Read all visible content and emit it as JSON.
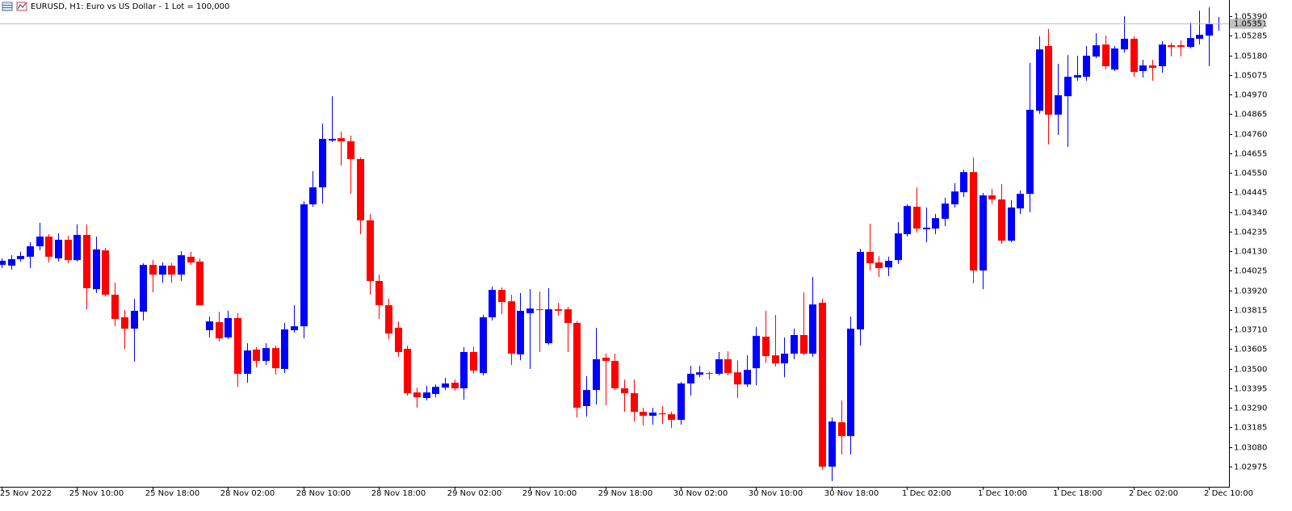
{
  "chart_data": {
    "type": "candlestick",
    "title": "EURUSD, H1:  Euro vs US Dollar - 1 Lot = 100,000",
    "up_color": "#0000ff",
    "down_color": "#ff0000",
    "bid": 1.05351,
    "bid_color": "#c0c0c0",
    "ylim": [
      1.02866,
      1.05477
    ],
    "yticks": [
      {
        "value": 1.0539,
        "label": "1.05390"
      },
      1.05285,
      {
        "value": 1.0518,
        "label": "1.05180"
      },
      1.05075,
      {
        "value": 1.0497,
        "label": "1.04970"
      },
      1.04865,
      {
        "value": 1.0476,
        "label": "1.04760"
      },
      1.04655,
      {
        "value": 1.0455,
        "label": "1.04550"
      },
      1.04445,
      {
        "value": 1.0434,
        "label": "1.04340"
      },
      1.04235,
      {
        "value": 1.0413,
        "label": "1.04130"
      },
      1.04025,
      {
        "value": 1.0392,
        "label": "1.03920"
      },
      1.03815,
      {
        "value": 1.0371,
        "label": "1.03710"
      },
      1.03605,
      {
        "value": 1.035,
        "label": "1.03500"
      },
      1.03395,
      {
        "value": 1.0329,
        "label": "1.03290"
      },
      1.03185,
      {
        "value": 1.0308,
        "label": "1.03080"
      },
      1.02975
    ],
    "categories": [
      "25 Nov 2022",
      null,
      null,
      null,
      null,
      null,
      null,
      null,
      "25 Nov 10:00",
      null,
      null,
      null,
      null,
      null,
      null,
      null,
      "25 Nov 18:00",
      null,
      null,
      null,
      null,
      null,
      null,
      null,
      "28 Nov 02:00",
      null,
      null,
      null,
      null,
      null,
      null,
      null,
      "28 Nov 10:00",
      null,
      null,
      null,
      null,
      null,
      null,
      null,
      "28 Nov 18:00",
      null,
      null,
      null,
      null,
      null,
      null,
      null,
      "29 Nov 02:00",
      null,
      null,
      null,
      null,
      null,
      null,
      null,
      "29 Nov 10:00",
      null,
      null,
      null,
      null,
      null,
      null,
      null,
      "29 Nov 18:00",
      null,
      null,
      null,
      null,
      null,
      null,
      null,
      "30 Nov 02:00",
      null,
      null,
      null,
      null,
      null,
      null,
      null,
      "30 Nov 10:00",
      null,
      null,
      null,
      null,
      null,
      null,
      null,
      "30 Nov 18:00",
      null,
      null,
      null,
      null,
      null,
      null,
      null,
      "1 Dec 02:00",
      null,
      null,
      null,
      null,
      null,
      null,
      null,
      "1 Dec 10:00",
      null,
      null,
      null,
      null,
      null,
      null,
      null,
      "1 Dec 18:00",
      null,
      null,
      null,
      null,
      null,
      null,
      null,
      "2 Dec 02:00",
      null,
      null,
      null,
      null,
      null,
      null,
      null,
      "2 Dec 10:00",
      null
    ],
    "open": [
      1.04056,
      1.04052,
      1.04087,
      1.041,
      1.04156,
      1.04208,
      1.04091,
      1.04191,
      1.04082,
      1.04217,
      1.03926,
      1.04134,
      1.03896,
      1.03775,
      1.03714,
      1.03805,
      1.04056,
      1.04004,
      1.04052,
      1.04004,
      1.041,
      1.04074,
      1.03706,
      1.03749,
      1.03667,
      1.03771,
      1.03472,
      1.03602,
      1.03541,
      1.0361,
      1.03498,
      1.03706,
      1.03727,
      1.04381,
      1.04472,
      1.04723,
      1.04736,
      1.04719,
      1.04624,
      1.04295,
      1.0397,
      1.0384,
      1.03719,
      1.03606,
      1.03372,
      1.03342,
      1.03364,
      1.03398,
      1.03424,
      1.03394,
      1.03589,
      1.03476,
      1.03775,
      1.03922,
      1.03861,
      1.03576,
      1.03797,
      1.03818,
      1.03636,
      1.03818,
      1.03818,
      1.03745,
      1.03299,
      1.03385,
      1.03558,
      1.03541,
      1.03394,
      1.03368,
      1.03268,
      1.03247,
      1.0326,
      1.03255,
      1.03225,
      1.0342,
      1.03467,
      1.03476,
      1.03472,
      1.0355,
      1.0348,
      1.03415,
      1.03502,
      1.03671,
      1.03571,
      1.03528,
      1.0358,
      1.0368,
      1.0358,
      1.03853,
      1.02974,
      1.03212,
      1.03138,
      1.0371,
      1.04126,
      1.04069,
      1.04043,
      1.04082,
      1.04221,
      1.04368,
      1.04247,
      1.04251,
      1.04303,
      1.04381,
      1.04446,
      1.04554,
      1.04026,
      1.04429,
      1.04407,
      1.04186,
      1.04359,
      1.04437,
      1.04883,
      1.0523,
      1.04862,
      1.04961,
      1.05061,
      1.05065,
      1.05174,
      1.05238,
      1.05104,
      1.05212,
      1.05269,
      1.05096,
      1.05126,
      1.05122,
      1.05234,
      1.05234,
      1.05225,
      1.05269,
      1.05286,
      1.05347
    ],
    "high": [
      1.04091,
      1.04108,
      1.04126,
      1.04178,
      1.04282,
      1.04221,
      1.04225,
      1.04212,
      1.04273,
      1.04273,
      1.04208,
      1.04147,
      1.03961,
      1.03814,
      1.03874,
      1.04065,
      1.04082,
      1.04069,
      1.04065,
      1.0413,
      1.04126,
      1.04091,
      1.03779,
      1.03805,
      1.0381,
      1.03797,
      1.03636,
      1.03615,
      1.03636,
      1.03623,
      1.03745,
      1.0384,
      1.04398,
      1.04559,
      1.04814,
      1.04961,
      1.04771,
      1.04749,
      1.04632,
      1.04329,
      1.04004,
      1.03874,
      1.03753,
      1.03623,
      1.03398,
      1.03407,
      1.03415,
      1.0345,
      1.03441,
      1.03615,
      1.03615,
      1.03788,
      1.03939,
      1.03935,
      1.03896,
      1.03905,
      1.03926,
      1.03913,
      1.03931,
      1.03853,
      1.03831,
      1.03753,
      1.03459,
      1.03719,
      1.0358,
      1.0358,
      1.03441,
      1.03441,
      1.0329,
      1.0329,
      1.03299,
      1.03268,
      1.03428,
      1.03515,
      1.03515,
      1.03485,
      1.03589,
      1.03593,
      1.03545,
      1.03571,
      1.03723,
      1.0381,
      1.03788,
      1.03667,
      1.03714,
      1.03909,
      1.03991,
      1.03874,
      1.03238,
      1.03329,
      1.03779,
      1.04143,
      1.04277,
      1.04104,
      1.041,
      1.04286,
      1.04381,
      1.04472,
      1.04364,
      1.04329,
      1.04416,
      1.04494,
      1.04567,
      1.04632,
      1.04442,
      1.04463,
      1.04489,
      1.04403,
      1.04455,
      1.05139,
      1.05282,
      1.05321,
      1.05135,
      1.05182,
      1.05178,
      1.0523,
      1.05299,
      1.05286,
      1.0523,
      1.0539,
      1.05282,
      1.05156,
      1.05156,
      1.05256,
      1.05247,
      1.0526,
      1.05355,
      1.0542,
      1.05438,
      1.05386
    ],
    "low": [
      1.04039,
      1.0403,
      1.04074,
      1.04039,
      1.04134,
      1.04069,
      1.04074,
      1.04065,
      1.04074,
      1.03818,
      1.03905,
      1.03887,
      1.03727,
      1.03606,
      1.03537,
      1.03758,
      1.03909,
      1.03961,
      1.03961,
      1.0397,
      1.04056,
      1.0384,
      1.03667,
      1.03645,
      1.03658,
      1.03402,
      1.03424,
      1.03506,
      1.03519,
      1.03467,
      1.03476,
      1.03693,
      1.03662,
      1.04368,
      1.04385,
      1.04715,
      1.04589,
      1.04437,
      1.04221,
      1.03896,
      1.03766,
      1.03658,
      1.03563,
      1.03355,
      1.0329,
      1.03329,
      1.03346,
      1.03385,
      1.03381,
      1.03333,
      1.03472,
      1.03463,
      1.03758,
      1.03792,
      1.03519,
      1.03545,
      1.03498,
      1.03589,
      1.03628,
      1.03784,
      1.03589,
      1.03238,
      1.03242,
      1.03307,
      1.03303,
      1.03385,
      1.03268,
      1.03216,
      1.03195,
      1.03199,
      1.03203,
      1.03182,
      1.03199,
      1.03355,
      1.03454,
      1.03441,
      1.03463,
      1.03463,
      1.03342,
      1.03402,
      1.03411,
      1.03532,
      1.03511,
      1.03454,
      1.0355,
      1.03571,
      1.03563,
      1.02957,
      1.02896,
      1.03039,
      1.03039,
      1.03623,
      1.04026,
      1.03991,
      1.03996,
      1.04061,
      1.04208,
      1.0423,
      1.04178,
      1.04221,
      1.04264,
      1.04364,
      1.0442,
      1.03957,
      1.03926,
      1.04385,
      1.04169,
      1.04178,
      1.04329,
      1.04338,
      1.04866,
      1.04702,
      1.04753,
      1.04689,
      1.05044,
      1.05044,
      1.05165,
      1.05104,
      1.05096,
      1.05195,
      1.05065,
      1.05061,
      1.05044,
      1.05087,
      1.05174,
      1.05174,
      1.05217,
      1.05238,
      1.05122,
      1.05312
    ],
    "close": [
      1.04078,
      1.04087,
      1.04104,
      1.04156,
      1.04208,
      1.041,
      1.04191,
      1.04082,
      1.04217,
      1.03931,
      1.04139,
      1.03896,
      1.03766,
      1.03714,
      1.0381,
      1.04056,
      1.04004,
      1.04052,
      1.04004,
      1.04108,
      1.04069,
      1.0384,
      1.03753,
      1.03662,
      1.03771,
      1.03472,
      1.03597,
      1.03541,
      1.0361,
      1.03502,
      1.0371,
      1.03727,
      1.04381,
      1.04472,
      1.04732,
      1.04732,
      1.04719,
      1.04624,
      1.04295,
      1.0397,
      1.0384,
      1.03688,
      1.03589,
      1.03368,
      1.03346,
      1.03372,
      1.03402,
      1.0342,
      1.03394,
      1.03589,
      1.03489,
      1.03775,
      1.03922,
      1.03857,
      1.0358,
      1.0381,
      1.03822,
      1.03814,
      1.03818,
      1.0381,
      1.03745,
      1.0329,
      1.03385,
      1.0355,
      1.03541,
      1.03394,
      1.03368,
      1.03268,
      1.03247,
      1.03264,
      1.03255,
      1.03225,
      1.0342,
      1.03472,
      1.0348,
      1.03472,
      1.0355,
      1.03476,
      1.03415,
      1.03493,
      1.03675,
      1.03567,
      1.03528,
      1.0358,
      1.0368,
      1.0358,
      1.03844,
      1.02974,
      1.03216,
      1.03138,
      1.03714,
      1.04126,
      1.04065,
      1.04039,
      1.04078,
      1.04225,
      1.04372,
      1.04251,
      1.04256,
      1.04307,
      1.04385,
      1.0445,
      1.04554,
      1.04026,
      1.04429,
      1.04407,
      1.04186,
      1.04364,
      1.04437,
      1.04888,
      1.05212,
      1.04862,
      1.04966,
      1.05065,
      1.05074,
      1.05178,
      1.05234,
      1.05122,
      1.05217,
      1.05269,
      1.05091,
      1.05126,
      1.05113,
      1.05238,
      1.05225,
      1.05225,
      1.05273,
      1.0529,
      1.05347,
      1.05351
    ]
  }
}
